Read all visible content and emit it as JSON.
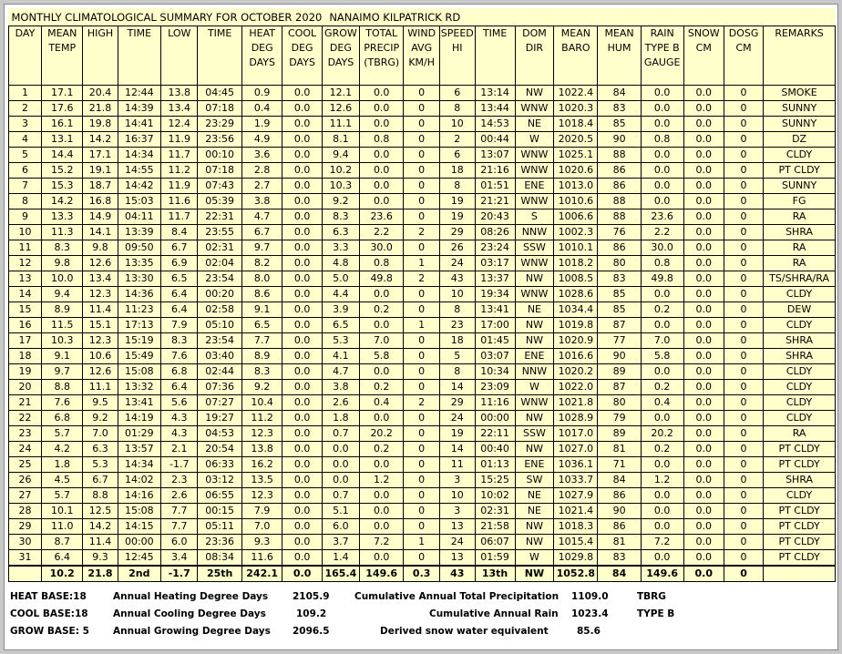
{
  "title": "MONTHLY CLIMATOLOGICAL SUMMARY FOR OCTOBER 2020",
  "station": "NANAIMO KILPATRICK RD",
  "columns": [
    [
      "DAY"
    ],
    [
      "MEAN",
      "TEMP"
    ],
    [
      "HIGH"
    ],
    [
      "TIME"
    ],
    [
      "LOW"
    ],
    [
      "TIME"
    ],
    [
      "HEAT",
      "DEG",
      "DAYS"
    ],
    [
      "COOL",
      "DEG",
      "DAYS"
    ],
    [
      "GROW",
      "DEG",
      "DAYS"
    ],
    [
      "TOTAL",
      "PRECIP",
      "(TBRG)"
    ],
    [
      "WIND",
      "AVG",
      "KM/H"
    ],
    [
      "SPEED",
      "HI"
    ],
    [
      "TIME"
    ],
    [
      "DOM",
      "DIR"
    ],
    [
      "MEAN",
      "BARO"
    ],
    [
      "MEAN",
      "HUM"
    ],
    [
      "RAIN",
      "TYPE B",
      "GAUGE"
    ],
    [
      "SNOW",
      "CM"
    ],
    [
      "DOSG",
      "CM"
    ],
    [
      "REMARKS"
    ]
  ],
  "rows": [
    [
      "1",
      "17.1",
      "20.4",
      "12:44",
      "13.8",
      "04:45",
      "0.9",
      "0.0",
      "12.1",
      "0.0",
      "0",
      "6",
      "13:14",
      "NW",
      "1022.4",
      "84",
      "0.0",
      "0.0",
      "0",
      "SMOKE"
    ],
    [
      "2",
      "17.6",
      "21.8",
      "14:39",
      "13.4",
      "07:18",
      "0.4",
      "0.0",
      "12.6",
      "0.0",
      "0",
      "8",
      "13:44",
      "WNW",
      "1020.3",
      "83",
      "0.0",
      "0.0",
      "0",
      "SUNNY"
    ],
    [
      "3",
      "16.1",
      "19.8",
      "14:41",
      "12.4",
      "23:29",
      "1.9",
      "0.0",
      "11.1",
      "0.0",
      "0",
      "10",
      "14:53",
      "NE",
      "1018.4",
      "85",
      "0.0",
      "0.0",
      "0",
      "SUNNY"
    ],
    [
      "4",
      "13.1",
      "14.2",
      "16:37",
      "11.9",
      "23:56",
      "4.9",
      "0.0",
      "8.1",
      "0.8",
      "0",
      "2",
      "00:44",
      "W",
      "2020.5",
      "90",
      "0.8",
      "0.0",
      "0",
      "DZ"
    ],
    [
      "5",
      "14.4",
      "17.1",
      "14:34",
      "11.7",
      "00:10",
      "3.6",
      "0.0",
      "9.4",
      "0.0",
      "0",
      "6",
      "13:07",
      "WNW",
      "1025.1",
      "88",
      "0.0",
      "0.0",
      "0",
      "CLDY"
    ],
    [
      "6",
      "15.2",
      "19.1",
      "14:55",
      "11.2",
      "07:18",
      "2.8",
      "0.0",
      "10.2",
      "0.0",
      "0",
      "18",
      "21:16",
      "WNW",
      "1020.6",
      "86",
      "0.0",
      "0.0",
      "0",
      "PT CLDY"
    ],
    [
      "7",
      "15.3",
      "18.7",
      "14:42",
      "11.9",
      "07:43",
      "2.7",
      "0.0",
      "10.3",
      "0.0",
      "0",
      "8",
      "01:51",
      "ENE",
      "1013.0",
      "86",
      "0.0",
      "0.0",
      "0",
      "SUNNY"
    ],
    [
      "8",
      "14.2",
      "16.8",
      "15:03",
      "11.6",
      "05:39",
      "3.8",
      "0.0",
      "9.2",
      "0.0",
      "0",
      "19",
      "21:21",
      "WNW",
      "1010.6",
      "88",
      "0.0",
      "0.0",
      "0",
      "FG"
    ],
    [
      "9",
      "13.3",
      "14.9",
      "04:11",
      "11.7",
      "22:31",
      "4.7",
      "0.0",
      "8.3",
      "23.6",
      "0",
      "19",
      "20:43",
      "S",
      "1006.6",
      "88",
      "23.6",
      "0.0",
      "0",
      "RA"
    ],
    [
      "10",
      "11.3",
      "14.1",
      "13:39",
      "8.4",
      "23:55",
      "6.7",
      "0.0",
      "6.3",
      "2.2",
      "2",
      "29",
      "08:26",
      "NNW",
      "1002.3",
      "76",
      "2.2",
      "0.0",
      "0",
      "SHRA"
    ],
    [
      "11",
      "8.3",
      "9.8",
      "09:50",
      "6.7",
      "02:31",
      "9.7",
      "0.0",
      "3.3",
      "30.0",
      "0",
      "26",
      "23:24",
      "SSW",
      "1010.1",
      "86",
      "30.0",
      "0.0",
      "0",
      "RA"
    ],
    [
      "12",
      "9.8",
      "12.6",
      "13:35",
      "6.9",
      "02:04",
      "8.2",
      "0.0",
      "4.8",
      "0.8",
      "1",
      "24",
      "03:17",
      "WNW",
      "1018.2",
      "80",
      "0.8",
      "0.0",
      "0",
      "RA"
    ],
    [
      "13",
      "10.0",
      "13.4",
      "13:30",
      "6.5",
      "23:54",
      "8.0",
      "0.0",
      "5.0",
      "49.8",
      "2",
      "43",
      "13:37",
      "NW",
      "1008.5",
      "83",
      "49.8",
      "0.0",
      "0",
      "TS/SHRA/RA"
    ],
    [
      "14",
      "9.4",
      "12.3",
      "14:36",
      "6.4",
      "00:20",
      "8.6",
      "0.0",
      "4.4",
      "0.0",
      "0",
      "10",
      "19:34",
      "WNW",
      "1028.6",
      "85",
      "0.0",
      "0.0",
      "0",
      "CLDY"
    ],
    [
      "15",
      "8.9",
      "11.4",
      "11:23",
      "6.4",
      "02:58",
      "9.1",
      "0.0",
      "3.9",
      "0.2",
      "0",
      "8",
      "13:41",
      "NE",
      "1034.4",
      "85",
      "0.2",
      "0.0",
      "0",
      "DEW"
    ],
    [
      "16",
      "11.5",
      "15.1",
      "17:13",
      "7.9",
      "05:10",
      "6.5",
      "0.0",
      "6.5",
      "0.0",
      "1",
      "23",
      "17:00",
      "NW",
      "1019.8",
      "87",
      "0.0",
      "0.0",
      "0",
      "CLDY"
    ],
    [
      "17",
      "10.3",
      "12.3",
      "15:19",
      "8.3",
      "23:54",
      "7.7",
      "0.0",
      "5.3",
      "7.0",
      "0",
      "18",
      "01:45",
      "NW",
      "1020.9",
      "77",
      "7.0",
      "0.0",
      "0",
      "SHRA"
    ],
    [
      "18",
      "9.1",
      "10.6",
      "15:49",
      "7.6",
      "03:40",
      "8.9",
      "0.0",
      "4.1",
      "5.8",
      "0",
      "5",
      "03:07",
      "ENE",
      "1016.6",
      "90",
      "5.8",
      "0.0",
      "0",
      "SHRA"
    ],
    [
      "19",
      "9.7",
      "12.6",
      "15:08",
      "6.8",
      "02:44",
      "8.3",
      "0.0",
      "4.7",
      "0.0",
      "0",
      "8",
      "10:34",
      "NNW",
      "1020.2",
      "89",
      "0.0",
      "0.0",
      "0",
      "CLDY"
    ],
    [
      "20",
      "8.8",
      "11.1",
      "13:32",
      "6.4",
      "07:36",
      "9.2",
      "0.0",
      "3.8",
      "0.2",
      "0",
      "14",
      "23:09",
      "W",
      "1022.0",
      "87",
      "0.2",
      "0.0",
      "0",
      "CLDY"
    ],
    [
      "21",
      "7.6",
      "9.5",
      "13:41",
      "5.6",
      "07:27",
      "10.4",
      "0.0",
      "2.6",
      "0.4",
      "2",
      "29",
      "11:16",
      "WNW",
      "1021.8",
      "80",
      "0.4",
      "0.0",
      "0",
      "CLDY"
    ],
    [
      "22",
      "6.8",
      "9.2",
      "14:19",
      "4.3",
      "19:27",
      "11.2",
      "0.0",
      "1.8",
      "0.0",
      "0",
      "24",
      "00:00",
      "NW",
      "1028.9",
      "79",
      "0.0",
      "0.0",
      "0",
      "CLDY"
    ],
    [
      "23",
      "5.7",
      "7.0",
      "01:29",
      "4.3",
      "04:53",
      "12.3",
      "0.0",
      "0.7",
      "20.2",
      "0",
      "19",
      "22:11",
      "SSW",
      "1017.0",
      "89",
      "20.2",
      "0.0",
      "0",
      "RA"
    ],
    [
      "24",
      "4.2",
      "6.3",
      "13:57",
      "2.1",
      "20:54",
      "13.8",
      "0.0",
      "0.0",
      "0.2",
      "0",
      "14",
      "00:40",
      "NW",
      "1027.0",
      "81",
      "0.2",
      "0.0",
      "0",
      "PT CLDY"
    ],
    [
      "25",
      "1.8",
      "5.3",
      "14:34",
      "-1.7",
      "06:33",
      "16.2",
      "0.0",
      "0.0",
      "0.0",
      "0",
      "11",
      "01:13",
      "ENE",
      "1036.1",
      "71",
      "0.0",
      "0.0",
      "0",
      "PT CLDY"
    ],
    [
      "26",
      "4.5",
      "6.7",
      "14:02",
      "2.3",
      "03:12",
      "13.5",
      "0.0",
      "0.0",
      "1.2",
      "0",
      "3",
      "15:25",
      "SW",
      "1033.7",
      "84",
      "1.2",
      "0.0",
      "0",
      "SHRA"
    ],
    [
      "27",
      "5.7",
      "8.8",
      "14:16",
      "2.6",
      "06:55",
      "12.3",
      "0.0",
      "0.7",
      "0.0",
      "0",
      "10",
      "10:02",
      "NE",
      "1027.9",
      "86",
      "0.0",
      "0.0",
      "0",
      "CLDY"
    ],
    [
      "28",
      "10.1",
      "12.5",
      "15:08",
      "7.7",
      "00:15",
      "7.9",
      "0.0",
      "5.1",
      "0.0",
      "0",
      "3",
      "02:31",
      "NE",
      "1021.4",
      "90",
      "0.0",
      "0.0",
      "0",
      "PT CLDY"
    ],
    [
      "29",
      "11.0",
      "14.2",
      "14:15",
      "7.7",
      "05:11",
      "7.0",
      "0.0",
      "6.0",
      "0.0",
      "0",
      "13",
      "21:58",
      "NW",
      "1018.3",
      "86",
      "0.0",
      "0.0",
      "0",
      "PT CLDY"
    ],
    [
      "30",
      "8.7",
      "11.4",
      "00:00",
      "6.0",
      "23:36",
      "9.3",
      "0.0",
      "3.7",
      "7.2",
      "1",
      "24",
      "06:07",
      "NW",
      "1015.4",
      "81",
      "7.2",
      "0.0",
      "0",
      "PT CLDY"
    ],
    [
      "31",
      "6.4",
      "9.3",
      "12:45",
      "3.4",
      "08:34",
      "11.6",
      "0.0",
      "1.4",
      "0.0",
      "0",
      "13",
      "01:59",
      "W",
      "1029.8",
      "83",
      "0.0",
      "0.0",
      "0",
      "PT CLDY"
    ]
  ],
  "totals": [
    "",
    "10.2",
    "21.8",
    "2nd",
    "-1.7",
    "25th",
    "242.1",
    "0.0",
    "165.4",
    "149.6",
    "0.3",
    "43",
    "13th",
    "NW",
    "1052.8",
    "84",
    "149.6",
    "0.0",
    "0",
    ""
  ],
  "footer": {
    "heat_base": "HEAT BASE:18",
    "heat_label": "Annual Heating Degree Days",
    "heat_value": "2105.9",
    "cool_base": "COOL BASE:18",
    "cool_label": "Annual Cooling Degree Days",
    "cool_value": "109.2",
    "grow_base": "GROW BASE: 5",
    "grow_label": "Annual Growing Degree Days",
    "grow_value": "2096.5",
    "precip_label": "Cumulative Annual Total Precipitation",
    "precip_value": "1109.0",
    "precip_unit": "TBRG",
    "rain_label": "Cumulative Annual Rain",
    "rain_value": "1023.4",
    "rain_unit": "TYPE B",
    "snow_label": "Derived snow water equivalent",
    "snow_value": "85.6"
  }
}
